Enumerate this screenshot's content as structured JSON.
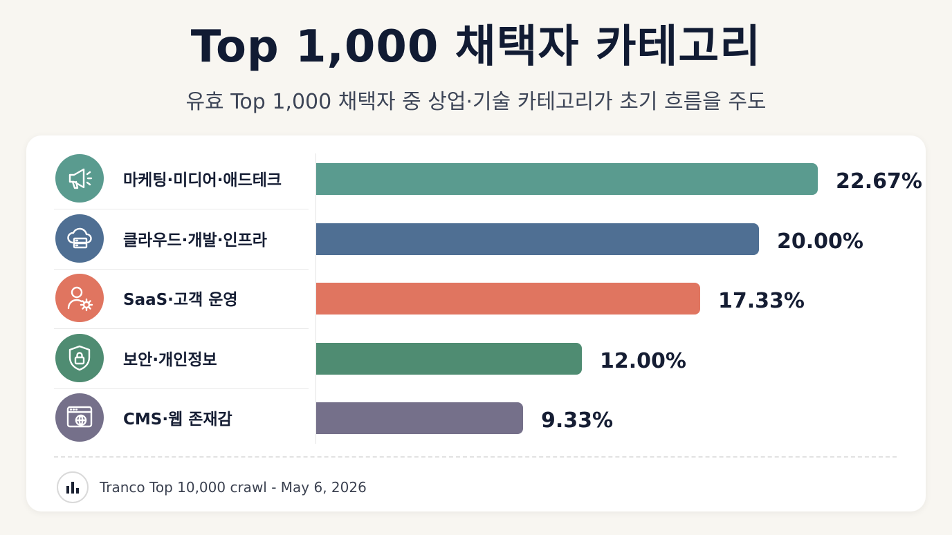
{
  "title": "Top 1,000 채택자 카테고리",
  "subtitle": "유효 Top 1,000 채택자 중 상업·기술 카테고리가 초기 흐름을 주도",
  "chart_data": {
    "type": "bar",
    "orientation": "horizontal",
    "title": "Top 1,000 채택자 카테고리",
    "subtitle": "유효 Top 1,000 채택자 중 상업·기술 카테고리가 초기 흐름을 주도",
    "xlim": [
      0,
      25
    ],
    "grid": false,
    "categories": [
      {
        "label": "마케팅·미디어·애드테크",
        "value": 22.67,
        "value_label": "22.67%",
        "color": "#5a9b8f",
        "icon": "megaphone-icon"
      },
      {
        "label": "클라우드·개발·인프라",
        "value": 20.0,
        "value_label": "20.00%",
        "color": "#4f6f93",
        "icon": "cloud-server-icon"
      },
      {
        "label": "SaaS·고객 운영",
        "value": 17.33,
        "value_label": "17.33%",
        "color": "#e07560",
        "icon": "user-gear-icon"
      },
      {
        "label": "보안·개인정보",
        "value": 12.0,
        "value_label": "12.00%",
        "color": "#4f8c72",
        "icon": "shield-lock-icon"
      },
      {
        "label": "CMS·웹 존재감",
        "value": 9.33,
        "value_label": "9.33%",
        "color": "#75708a",
        "icon": "browser-globe-icon"
      }
    ]
  },
  "footer": {
    "source": "Tranco Top 10,000 crawl - May 6, 2026",
    "icon": "bar-chart-icon"
  }
}
